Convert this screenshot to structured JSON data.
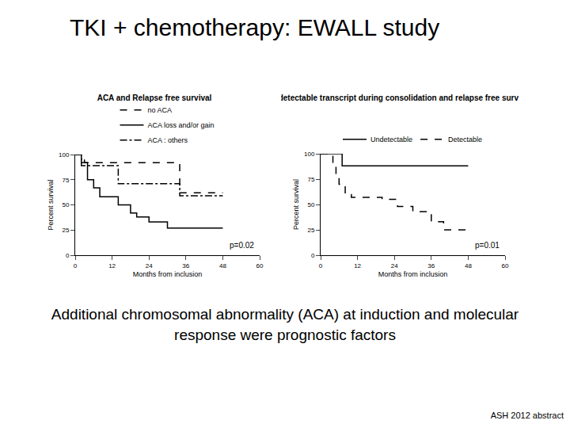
{
  "slide": {
    "title": "TKI + chemotherapy: EWALL study",
    "caption": "Additional chromosomal abnormality (ACA) at induction and molecular response were prognostic factors",
    "source": "ASH 2012 abstract"
  },
  "chart_data": [
    {
      "type": "line",
      "title": "ACA and Relapse free survival",
      "x_label": "Months from inclusion",
      "y_label": "Percent survival",
      "xlim": [
        0,
        60
      ],
      "xticks": [
        0,
        12,
        24,
        36,
        48,
        60
      ],
      "ylim": [
        0,
        100
      ],
      "yticks": [
        0,
        25,
        50,
        75,
        100
      ],
      "grid": false,
      "legend": "top",
      "annotations": [
        {
          "text": "p=0.02"
        }
      ],
      "series": [
        {
          "name": "no ACA",
          "color": "#000000",
          "line_style": "dash",
          "x": [
            0,
            3,
            34,
            48
          ],
          "values": [
            100,
            92,
            62,
            62
          ]
        },
        {
          "name": "ACA loss and/or gain",
          "color": "#000000",
          "line_style": "solid",
          "x": [
            0,
            2,
            4,
            6,
            8,
            14,
            18,
            20,
            24,
            30,
            48
          ],
          "values": [
            100,
            92,
            75,
            67,
            58,
            50,
            42,
            38,
            33,
            27,
            27
          ]
        },
        {
          "name": "ACA : others",
          "color": "#000000",
          "line_style": "dashdot",
          "x": [
            0,
            2,
            14,
            34,
            48
          ],
          "values": [
            100,
            89,
            71,
            59,
            59
          ]
        }
      ]
    },
    {
      "type": "line",
      "title": "Undetectable transcript during consolidation and relapse free survival",
      "x_label": "Months from inclusion",
      "y_label": "Percent survival",
      "xlim": [
        0,
        60
      ],
      "xticks": [
        0,
        12,
        24,
        36,
        48,
        60
      ],
      "ylim": [
        0,
        100
      ],
      "yticks": [
        0,
        25,
        50,
        75,
        100
      ],
      "grid": false,
      "legend": "top",
      "annotations": [
        {
          "text": "p=0.01"
        }
      ],
      "series": [
        {
          "name": "Undetectable",
          "color": "#000000",
          "line_style": "solid",
          "x": [
            0,
            7,
            48
          ],
          "values": [
            100,
            88,
            88
          ]
        },
        {
          "name": "Detectable",
          "color": "#000000",
          "line_style": "dash",
          "x": [
            0,
            4,
            5,
            6,
            8,
            10,
            20,
            25,
            30,
            36,
            40,
            49
          ],
          "values": [
            100,
            90,
            80,
            70,
            60,
            57,
            55,
            48,
            43,
            33,
            25,
            25
          ]
        }
      ]
    }
  ]
}
